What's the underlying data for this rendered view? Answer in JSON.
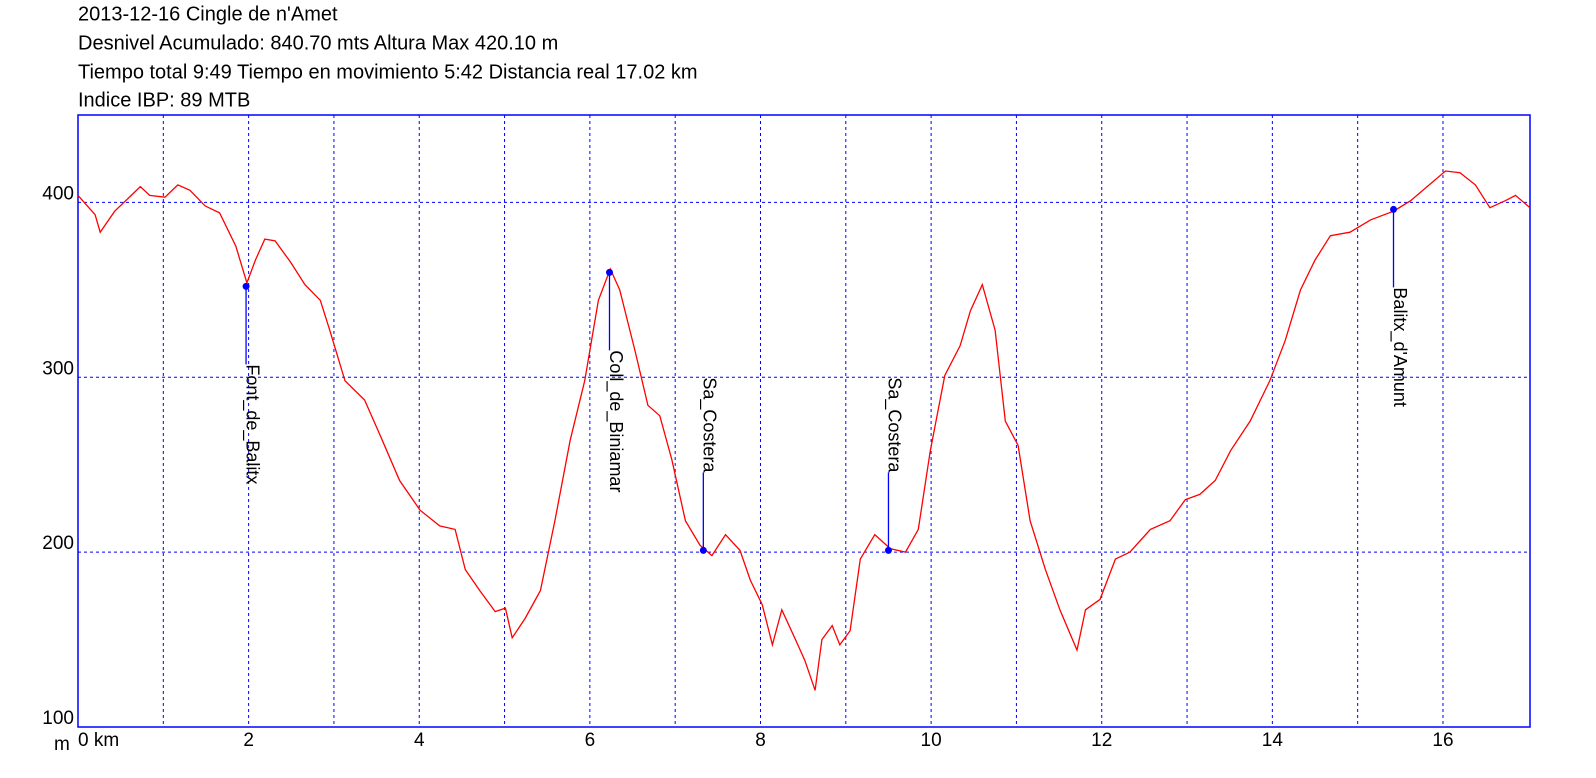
{
  "chart_data": {
    "type": "line",
    "title_lines": [
      "2013-12-16 Cingle de n'Amet",
      "Desnivel Acumulado: 840.70 mts  Altura Max 420.10 m",
      "Tiempo total 9:49 Tiempo en movimiento 5:42 Distancia real 17.02 km",
      "Indice IBP: 89 MTB"
    ],
    "y_label": "m",
    "x": [
      0,
      0.2,
      0.26,
      0.43,
      0.73,
      0.84,
      1.02,
      1.17,
      1.31,
      1.49,
      1.66,
      1.85,
      1.98,
      2.08,
      2.19,
      2.31,
      2.49,
      2.66,
      2.84,
      2.95,
      3.13,
      3.36,
      3.54,
      3.77,
      4.01,
      4.24,
      4.42,
      4.54,
      4.71,
      4.89,
      5.01,
      5.09,
      5.24,
      5.42,
      5.59,
      5.77,
      5.94,
      6.1,
      6.24,
      6.35,
      6.53,
      6.68,
      6.82,
      6.96,
      7.12,
      7.29,
      7.43,
      7.59,
      7.76,
      7.88,
      8.02,
      8.14,
      8.25,
      8.41,
      8.52,
      8.64,
      8.72,
      8.84,
      8.93,
      9.05,
      9.17,
      9.34,
      9.52,
      9.7,
      9.85,
      9.99,
      10.16,
      10.34,
      10.46,
      10.6,
      10.75,
      10.87,
      11.02,
      11.16,
      11.34,
      11.51,
      11.71,
      11.81,
      11.98,
      12.16,
      12.33,
      12.57,
      12.8,
      12.98,
      13.15,
      13.33,
      13.51,
      13.74,
      13.97,
      14.15,
      14.33,
      14.5,
      14.68,
      14.91,
      15.15,
      15.42,
      15.62,
      15.79,
      16.03,
      16.2,
      16.38,
      16.55,
      16.73,
      16.85,
      17.02
    ],
    "series": [
      {
        "color": "#ff0000",
        "values": [
          404,
          393,
          383,
          395,
          409,
          404,
          403,
          410,
          407,
          398,
          394,
          375,
          354,
          367,
          379,
          378,
          366,
          353,
          344,
          327,
          298,
          287,
          267,
          241,
          224,
          215,
          213,
          190,
          178,
          166,
          168,
          151,
          162,
          178,
          218,
          264,
          298,
          344,
          362,
          350,
          315,
          284,
          278,
          253,
          218,
          204,
          198,
          210,
          201,
          184,
          170,
          147,
          167,
          150,
          138,
          121,
          150,
          158,
          147,
          155,
          196,
          210,
          202,
          200,
          213,
          258,
          301,
          318,
          338,
          353,
          327,
          275,
          261,
          218,
          190,
          167,
          144,
          167,
          173,
          196,
          200,
          213,
          218,
          230,
          233,
          241,
          258,
          275,
          298,
          321,
          350,
          367,
          381,
          383,
          390,
          395,
          401,
          408,
          418,
          417,
          410,
          397,
          401,
          404,
          397
        ]
      }
    ],
    "waypoints": [
      {
        "name": "Font_de_Balitx",
        "x": 1.97,
        "y": 352
      },
      {
        "name": "Coll_de_Biniamar",
        "x": 6.23,
        "y": 360
      },
      {
        "name": "Sa_Costera",
        "x": 7.33,
        "y": 201
      },
      {
        "name": "Sa_Costera",
        "x": 9.5,
        "y": 201
      },
      {
        "name": "Balitx_d'Amunt",
        "x": 15.42,
        "y": 396
      }
    ],
    "waypoint_color": "#0000ff",
    "frame_color": "#0000ff",
    "xlim": [
      0,
      17.02
    ],
    "ylim": [
      100,
      450
    ],
    "xticks": [
      {
        "value": 0,
        "label": "0 km"
      },
      2,
      4,
      6,
      8,
      10,
      12,
      14,
      16
    ],
    "x_grid": [
      1,
      3,
      5,
      7,
      9,
      11,
      13,
      15
    ],
    "yticks": [
      100,
      200,
      300,
      400
    ],
    "grid": true
  }
}
